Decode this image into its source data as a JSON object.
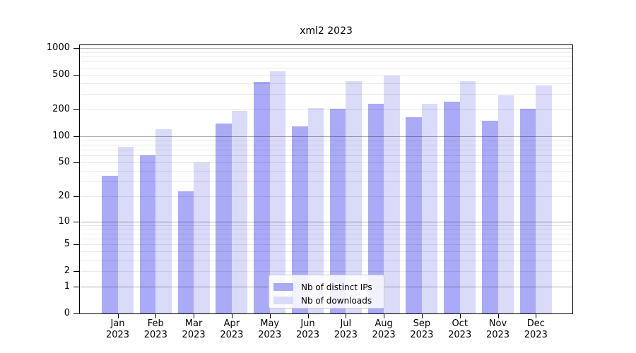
{
  "chart_data": {
    "type": "bar",
    "title": "xml2 2023",
    "y_scale": "symlog (position = log10(1+value))",
    "categories": [
      "Jan",
      "Feb",
      "Mar",
      "Apr",
      "May",
      "Jun",
      "Jul",
      "Aug",
      "Sep",
      "Oct",
      "Nov",
      "Dec"
    ],
    "year": "2023",
    "series": [
      {
        "name": "Nb of distinct IPs",
        "color": "#aaaaf6",
        "values": [
          35,
          60,
          23,
          140,
          410,
          130,
          205,
          235,
          165,
          245,
          150,
          205
        ]
      },
      {
        "name": "Nb of downloads",
        "color": "#dadaf9",
        "values": [
          75,
          120,
          50,
          195,
          550,
          210,
          425,
          490,
          235,
          420,
          290,
          380
        ]
      }
    ],
    "y_ticks": [
      0,
      1,
      2,
      5,
      10,
      20,
      50,
      100,
      200,
      500,
      1000
    ],
    "y_major_gridlines": [
      1,
      10,
      100,
      1000
    ],
    "y_minor_gridlines": [
      2,
      3,
      4,
      5,
      6,
      7,
      8,
      9,
      20,
      30,
      40,
      50,
      60,
      70,
      80,
      90,
      200,
      300,
      400,
      500,
      600,
      700,
      800,
      900
    ],
    "ylim": [
      0,
      1100
    ],
    "legend": {
      "position": "lower center"
    },
    "colors": {
      "minor_grid": "rgba(0,0,0,0.08)",
      "major_grid": "rgba(0,0,0,0.32)",
      "spine": "#000000",
      "text": "#000000",
      "legend_border": "#cccccc"
    }
  }
}
